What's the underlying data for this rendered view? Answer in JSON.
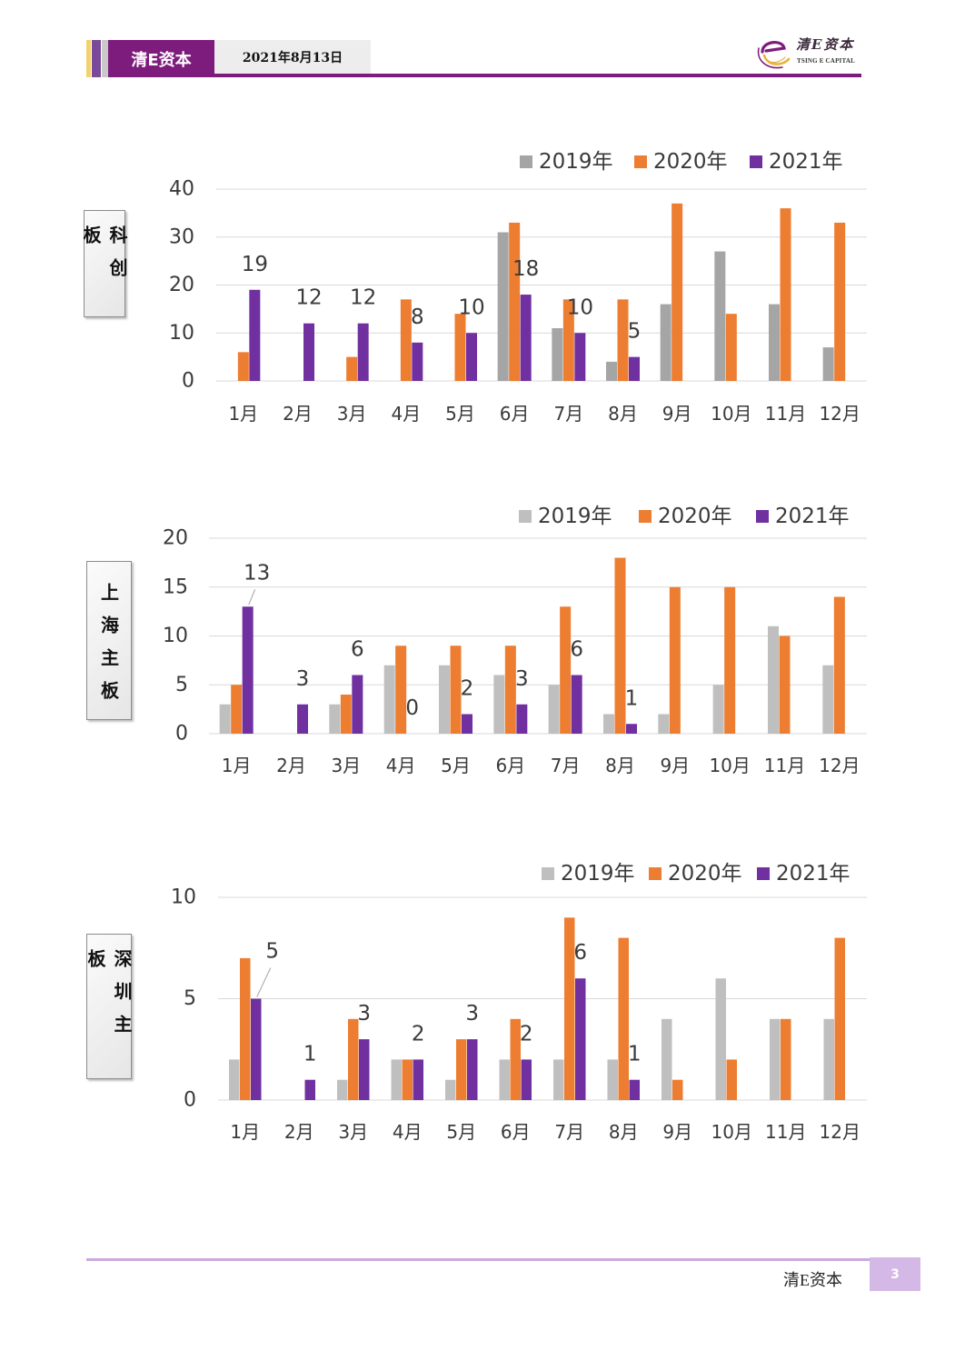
{
  "header": {
    "brand": "清E资本",
    "date": "2021年8月13日",
    "logo_text": "清E资本",
    "logo_subtext": "TSING E CAPITAL"
  },
  "colors": {
    "accent": "#7D1C7D",
    "footer_accent": "#CBA8DF"
  },
  "chart_data": [
    {
      "type": "bar",
      "title": "科创板",
      "categories": [
        "1月",
        "2月",
        "3月",
        "4月",
        "5月",
        "6月",
        "7月",
        "8月",
        "9月",
        "10月",
        "11月",
        "12月"
      ],
      "ylim": [
        0,
        40
      ],
      "yticks": [
        0,
        10,
        20,
        30,
        40
      ],
      "grid": true,
      "legend": "top-right",
      "series": [
        {
          "name": "2019年",
          "color": "#A5A5A5",
          "values": [
            0,
            0,
            0,
            0,
            0,
            31,
            11,
            4,
            16,
            27,
            16,
            7
          ]
        },
        {
          "name": "2020年",
          "color": "#ED7D31",
          "values": [
            6,
            0,
            5,
            17,
            14,
            33,
            17,
            17,
            37,
            14,
            36,
            33
          ]
        },
        {
          "name": "2021年",
          "color": "#7030A0",
          "data_labels": true,
          "values": [
            19,
            12,
            12,
            8,
            10,
            18,
            10,
            5,
            null,
            null,
            null,
            null
          ]
        }
      ]
    },
    {
      "type": "bar",
      "title": "上海主板",
      "categories": [
        "1月",
        "2月",
        "3月",
        "4月",
        "5月",
        "6月",
        "7月",
        "8月",
        "9月",
        "10月",
        "11月",
        "12月"
      ],
      "ylim": [
        0,
        20
      ],
      "yticks": [
        0,
        5,
        10,
        15,
        20
      ],
      "grid": true,
      "legend": "top-right",
      "series": [
        {
          "name": "2019年",
          "color": "#BFBFBF",
          "values": [
            3,
            0,
            3,
            7,
            7,
            6,
            5,
            2,
            2,
            5,
            11,
            7
          ]
        },
        {
          "name": "2020年",
          "color": "#ED7D31",
          "values": [
            5,
            0,
            4,
            9,
            9,
            9,
            13,
            18,
            15,
            15,
            10,
            14
          ]
        },
        {
          "name": "2021年",
          "color": "#7030A0",
          "data_labels": true,
          "values": [
            13,
            3,
            6,
            0,
            2,
            3,
            6,
            1,
            null,
            null,
            null,
            null
          ]
        }
      ]
    },
    {
      "type": "bar",
      "title": "深圳主板",
      "categories": [
        "1月",
        "2月",
        "3月",
        "4月",
        "5月",
        "6月",
        "7月",
        "8月",
        "9月",
        "10月",
        "11月",
        "12月"
      ],
      "ylim": [
        0,
        10
      ],
      "yticks": [
        0,
        5,
        10
      ],
      "grid": true,
      "legend": "top-right",
      "series": [
        {
          "name": "2019年",
          "color": "#BFBFBF",
          "values": [
            2,
            0,
            1,
            2,
            1,
            2,
            2,
            2,
            4,
            6,
            4,
            4
          ]
        },
        {
          "name": "2020年",
          "color": "#ED7D31",
          "values": [
            7,
            0,
            4,
            2,
            3,
            4,
            9,
            8,
            1,
            2,
            4,
            8
          ]
        },
        {
          "name": "2021年",
          "color": "#7030A0",
          "data_labels": true,
          "values": [
            5,
            1,
            3,
            2,
            3,
            2,
            6,
            1,
            null,
            null,
            null,
            null
          ]
        }
      ]
    }
  ],
  "footer": {
    "brand": "清E资本",
    "page": "3"
  }
}
